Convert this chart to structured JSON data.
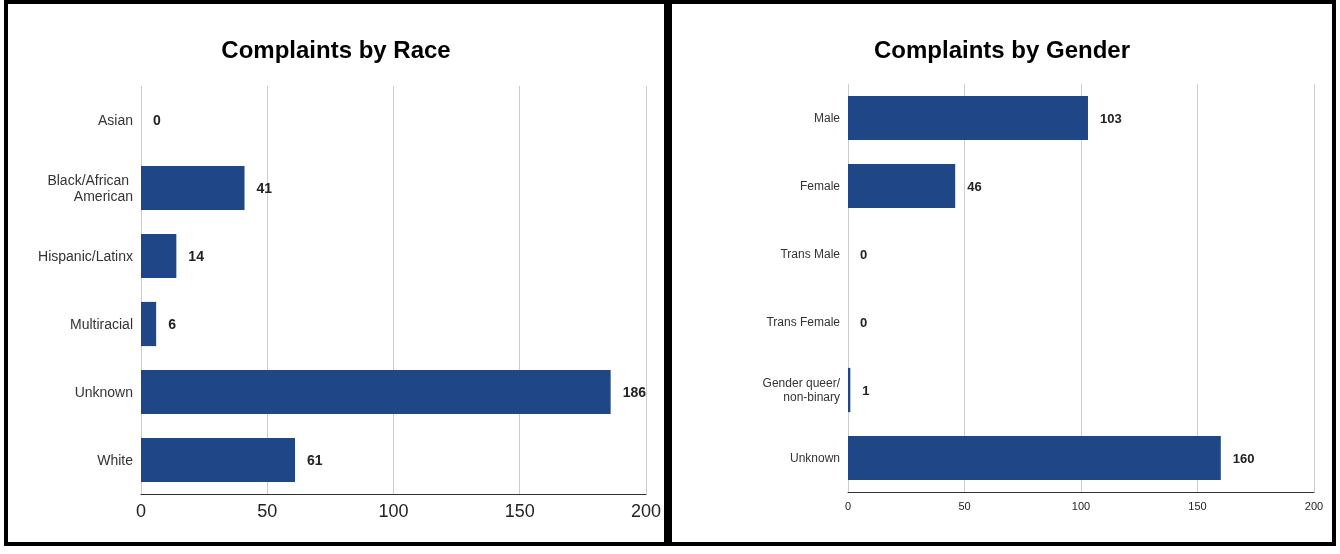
{
  "chart_data": [
    {
      "type": "bar",
      "orientation": "horizontal",
      "title": "Complaints by Race",
      "categories": [
        "Asian",
        "Black/African American",
        "Hispanic/Latinx",
        "Multiracial",
        "Unknown",
        "White"
      ],
      "values": [
        0,
        41,
        14,
        6,
        186,
        61
      ],
      "color": "#1f4788",
      "xlim": [
        0,
        200
      ],
      "xticks": [
        0,
        50,
        100,
        150,
        200
      ],
      "grid": "x",
      "data_labels": true
    },
    {
      "type": "bar",
      "orientation": "horizontal",
      "title": "Complaints by Gender",
      "categories": [
        "Male",
        "Female",
        "Trans Male",
        "Trans Female",
        "Gender queer/non-binary",
        "Unknown"
      ],
      "values": [
        103,
        46,
        0,
        0,
        1,
        160
      ],
      "color": "#1f4788",
      "xlim": [
        0,
        200
      ],
      "xticks": [
        0,
        50,
        100,
        150,
        200
      ],
      "grid": "x",
      "data_labels": true
    }
  ]
}
